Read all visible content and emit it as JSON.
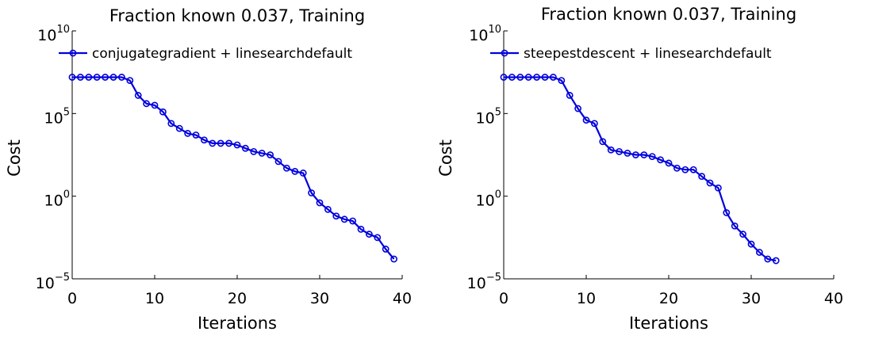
{
  "chart_data": [
    {
      "type": "line",
      "title": "Fraction known 0.037, Training",
      "xlabel": "Iterations",
      "ylabel": "Cost",
      "xlim": [
        0,
        40
      ],
      "ylim": [
        1e-05,
        10000000000.0
      ],
      "yscale": "log",
      "xticks": [
        "0",
        "10",
        "20",
        "30",
        "40"
      ],
      "yticks": [
        {
          "base": "10",
          "exp": "10"
        },
        {
          "base": "10",
          "exp": "5"
        },
        {
          "base": "10",
          "exp": "0"
        },
        {
          "base": "10",
          "exp": "−5"
        }
      ],
      "grid": false,
      "legend_position": "top-left",
      "series": [
        {
          "name": "conjugategradient + linesearchdefault",
          "color": "#0000dd",
          "x": [
            0,
            1,
            2,
            3,
            4,
            5,
            6,
            7,
            8,
            9,
            10,
            11,
            12,
            13,
            14,
            15,
            16,
            17,
            18,
            19,
            20,
            21,
            22,
            23,
            24,
            25,
            26,
            27,
            28,
            29,
            30,
            31,
            32,
            33,
            34,
            35,
            36,
            37,
            38,
            39
          ],
          "y": [
            15800000.0,
            15800000.0,
            15800000.0,
            15800000.0,
            15800000.0,
            15800000.0,
            15800000.0,
            10000000.0,
            1260000.0,
            398000.0,
            316000.0,
            126000.0,
            25100.0,
            12600.0,
            6300.0,
            5000.0,
            2510.0,
            1580.0,
            1580.0,
            1580.0,
            1260.0,
            790.0,
            500.0,
            400.0,
            316.0,
            126.0,
            50.0,
            31.6,
            25.1,
            1.58,
            0.398,
            0.158,
            0.063,
            0.04,
            0.0316,
            0.01,
            0.005,
            0.00316,
            0.00063,
            0.000158
          ]
        }
      ]
    },
    {
      "type": "line",
      "title": "Fraction known 0.037, Training",
      "xlabel": "Iterations",
      "ylabel": "Cost",
      "xlim": [
        0,
        40
      ],
      "ylim": [
        1e-05,
        10000000000.0
      ],
      "yscale": "log",
      "xticks": [
        "0",
        "10",
        "20",
        "30",
        "40"
      ],
      "yticks": [
        {
          "base": "10",
          "exp": "10"
        },
        {
          "base": "10",
          "exp": "5"
        },
        {
          "base": "10",
          "exp": "0"
        },
        {
          "base": "10",
          "exp": "−5"
        }
      ],
      "grid": false,
      "legend_position": "top-left",
      "series": [
        {
          "name": "steepestdescent + linesearchdefault",
          "color": "#0000dd",
          "x": [
            0,
            1,
            2,
            3,
            4,
            5,
            6,
            7,
            8,
            9,
            10,
            11,
            12,
            13,
            14,
            15,
            16,
            17,
            18,
            19,
            20,
            21,
            22,
            23,
            24,
            25,
            26,
            27,
            28,
            29,
            30,
            31,
            32,
            33
          ],
          "y": [
            15800000.0,
            15800000.0,
            15800000.0,
            15800000.0,
            15800000.0,
            15800000.0,
            15800000.0,
            10000000.0,
            1260000.0,
            200000.0,
            39800.0,
            25100.0,
            2000.0,
            630.0,
            500.0,
            400.0,
            316.0,
            316.0,
            251.0,
            158.0,
            100.0,
            50.0,
            40.0,
            40.0,
            15.8,
            6.3,
            3.16,
            0.1,
            0.0158,
            0.005,
            0.00126,
            0.0004,
            0.000158,
            0.000126
          ]
        }
      ]
    }
  ]
}
